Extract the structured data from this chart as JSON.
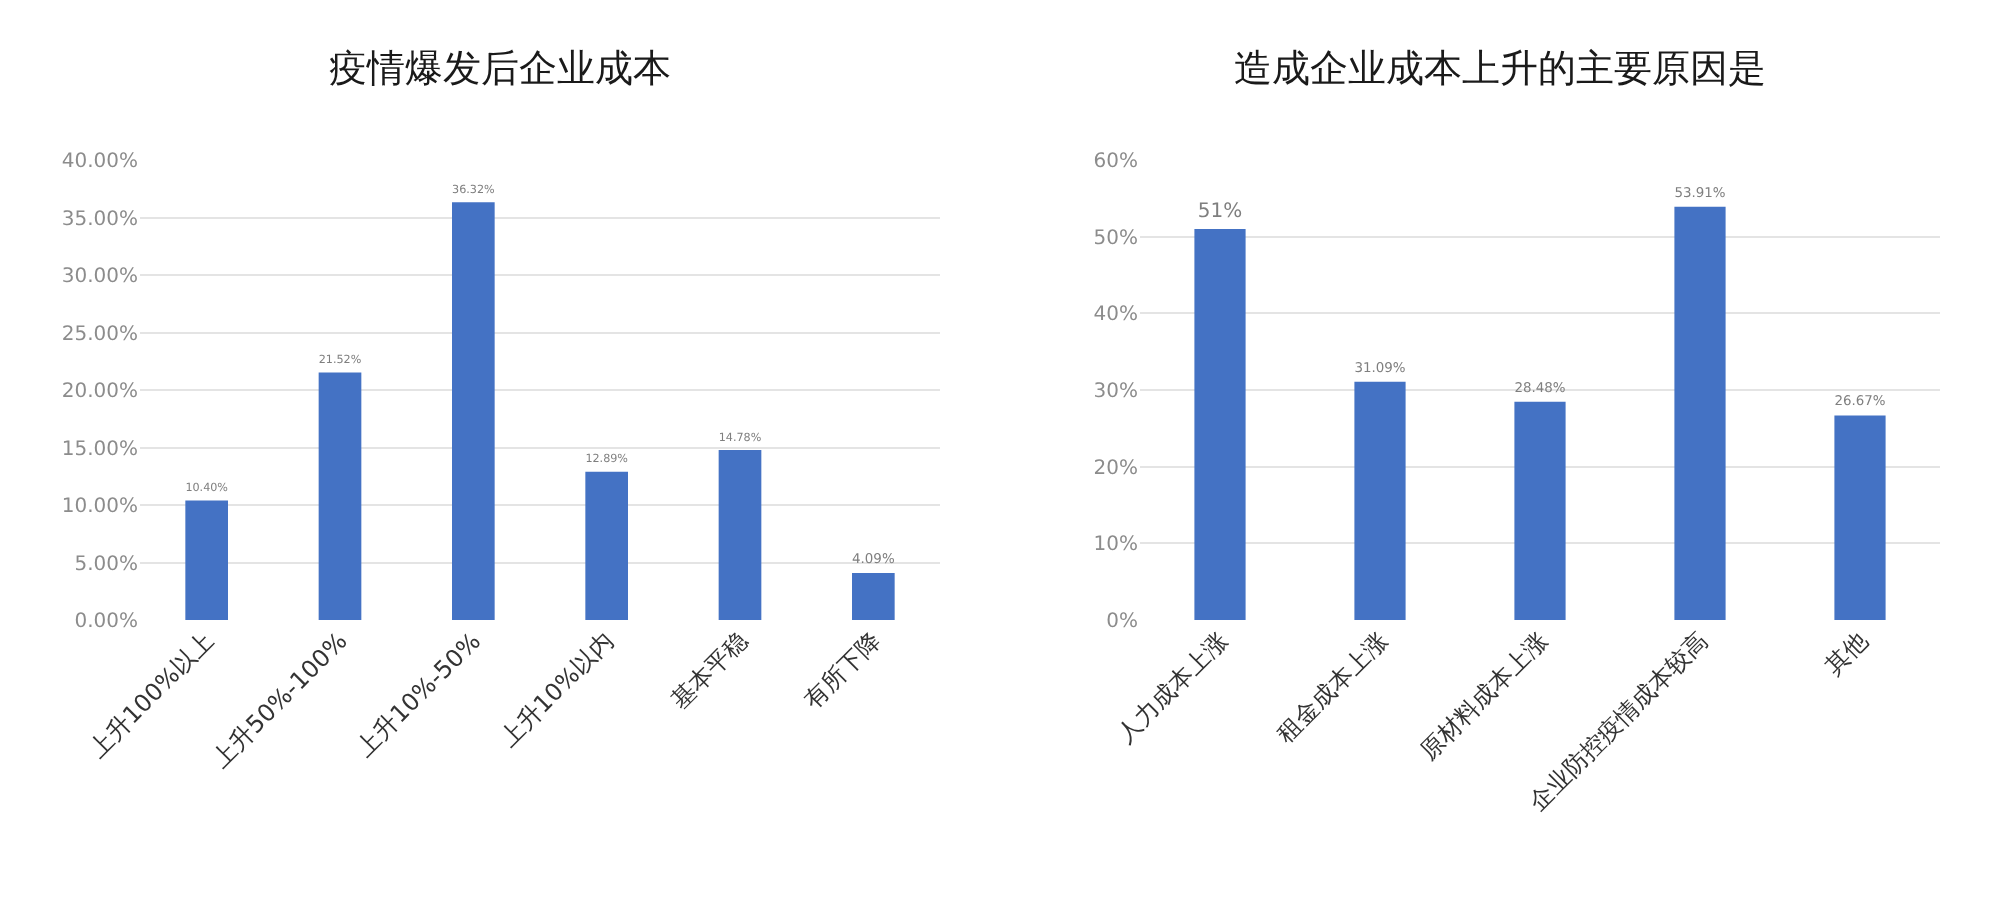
{
  "chart_data": [
    {
      "type": "bar",
      "title": "疫情爆发后企业成本",
      "categories": [
        "上升100%以上",
        "上升50%-100%",
        "上升10%-50%",
        "上升10%以内",
        "基本平稳",
        "有所下降"
      ],
      "values": [
        10.4,
        21.52,
        36.32,
        12.89,
        14.78,
        4.09
      ],
      "value_labels": [
        "10.40%",
        "21.52%",
        "36.32%",
        "12.89%",
        "14.78%",
        "4.09%"
      ],
      "color": "#4472c4",
      "ylim": [
        0,
        40
      ],
      "yticks": [
        {
          "value": 0,
          "label": "0.00%"
        },
        {
          "value": 5,
          "label": "5.00%"
        },
        {
          "value": 10,
          "label": "10.00%"
        },
        {
          "value": 15,
          "label": "15.00%"
        },
        {
          "value": 20,
          "label": "20.00%"
        },
        {
          "value": 25,
          "label": "25.00%"
        },
        {
          "value": 30,
          "label": "30.00%"
        },
        {
          "value": 35,
          "label": "35.00%"
        },
        {
          "value": 40,
          "label": "40.00%"
        }
      ],
      "grid": "y"
    },
    {
      "type": "bar",
      "title": "造成企业成本上升的主要原因是",
      "categories": [
        "人力成本上涨",
        "租金成本上涨",
        "原材料成本上涨",
        "企业防控疫情成本较高",
        "其他"
      ],
      "values": [
        51,
        31.09,
        28.48,
        53.91,
        26.67
      ],
      "value_labels": [
        "51%",
        "31.09%",
        "28.48%",
        "53.91%",
        "26.67%"
      ],
      "color": "#4472c4",
      "ylim": [
        0,
        60
      ],
      "yticks": [
        {
          "value": 0,
          "label": "0%"
        },
        {
          "value": 10,
          "label": "10%"
        },
        {
          "value": 20,
          "label": "20%"
        },
        {
          "value": 30,
          "label": "30%"
        },
        {
          "value": 40,
          "label": "40%"
        },
        {
          "value": 50,
          "label": "50%"
        },
        {
          "value": 60,
          "label": "60%"
        }
      ],
      "grid": "y"
    }
  ]
}
